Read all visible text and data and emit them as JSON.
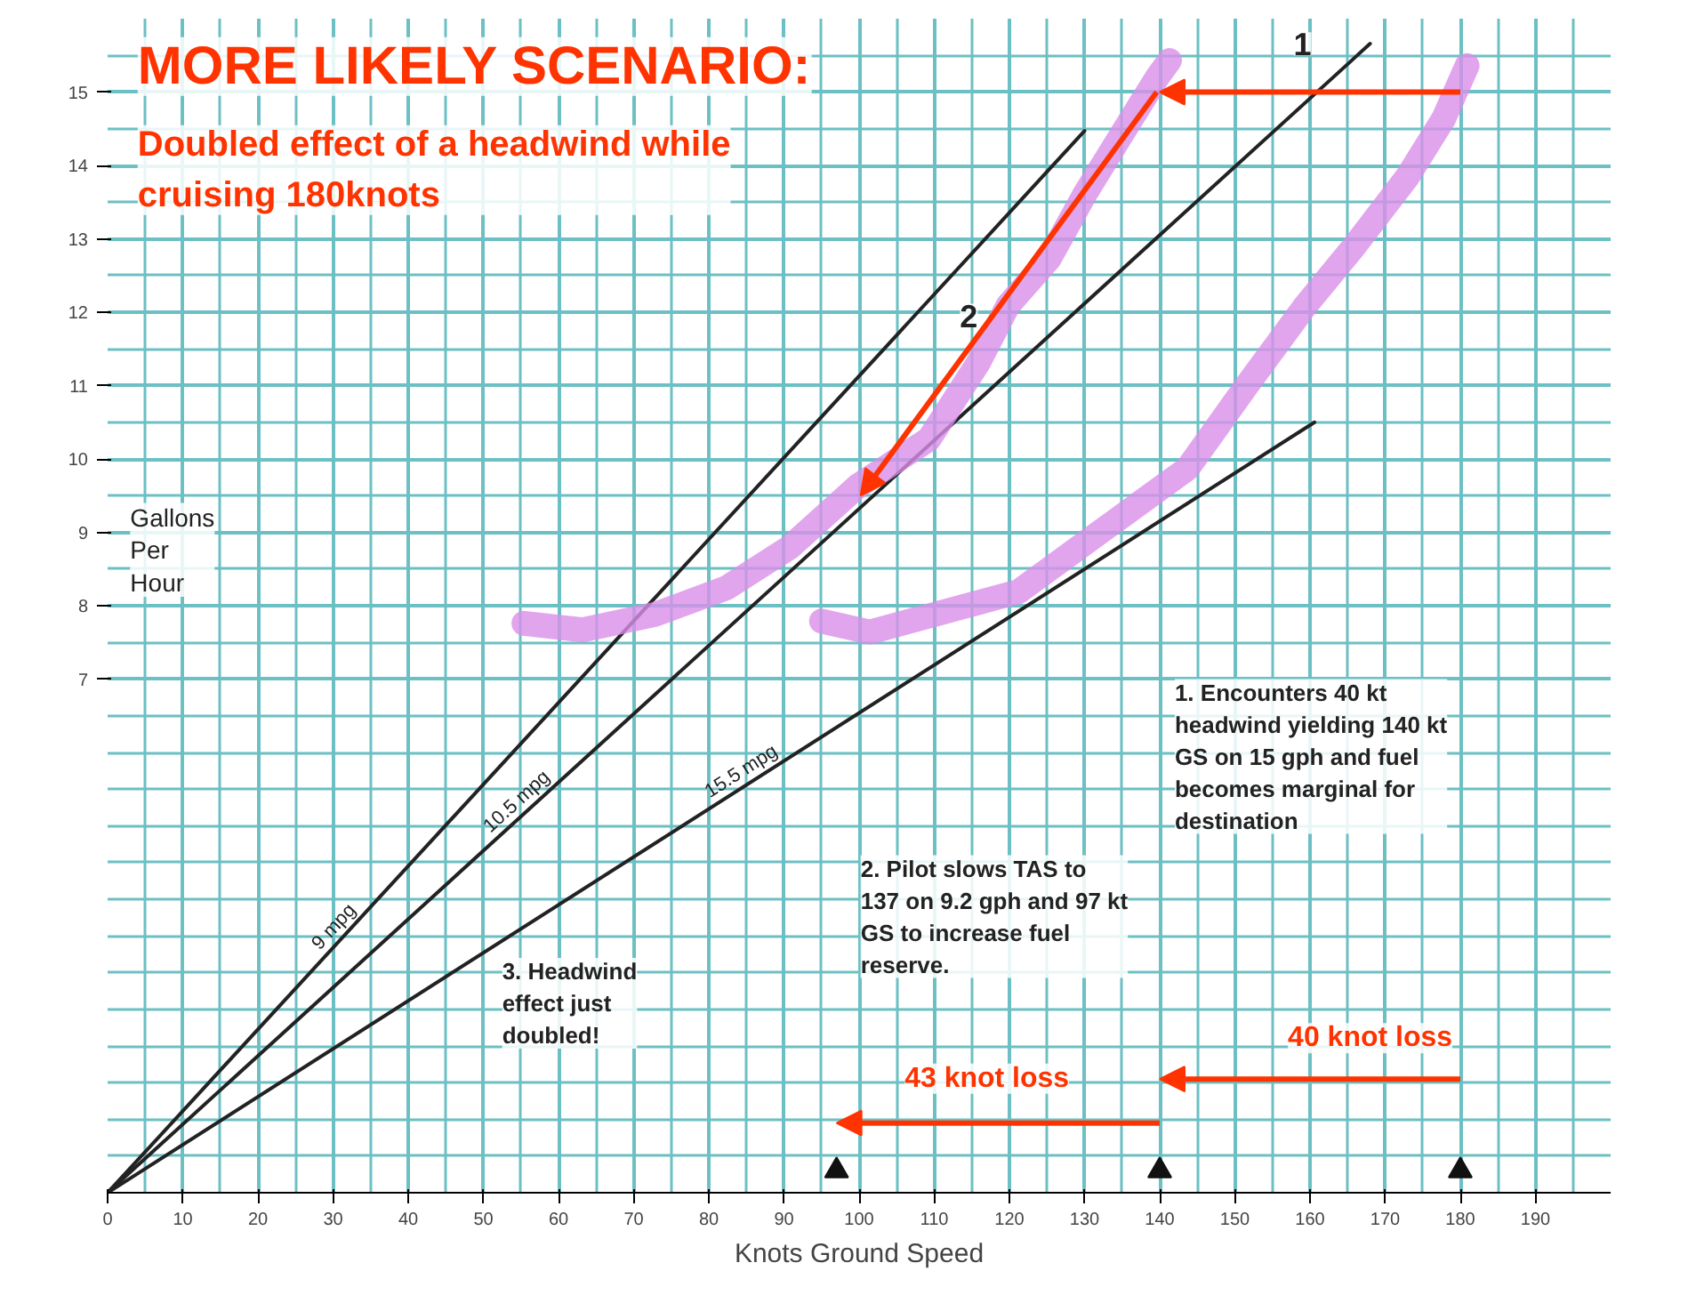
{
  "chart_data": {
    "type": "line",
    "title": "MORE LIKELY SCENARIO:",
    "subtitle": "Doubled effect of a headwind while cruising 180knots",
    "xlabel": "Knots Ground Speed",
    "ylabel": "Gallons Per Hour",
    "xlim": [
      0,
      200
    ],
    "ylim": [
      0,
      16
    ],
    "xticks": [
      0,
      10,
      20,
      30,
      40,
      50,
      60,
      70,
      80,
      90,
      100,
      110,
      120,
      130,
      140,
      150,
      160,
      170,
      180,
      190
    ],
    "yticks": [
      7,
      8,
      9,
      10,
      11,
      12,
      13,
      14,
      15
    ],
    "grid": true,
    "marker": "none",
    "line_style": "solid",
    "series": [
      {
        "name": "9 mpg",
        "color": "#222222",
        "x": [
          0,
          130
        ],
        "values": [
          0,
          14.47
        ]
      },
      {
        "name": "10.5 mpg",
        "color": "#222222",
        "x": [
          0,
          168
        ],
        "values": [
          0,
          15.66
        ]
      },
      {
        "name": "15.5 mpg",
        "color": "#222222",
        "x": [
          0,
          160.6
        ],
        "values": [
          0,
          10.5
        ]
      },
      {
        "color": "#d98ee8",
        "x": [
          55.4,
          63.2,
          72.8,
          82.3,
          90.7,
          99.8,
          109.3,
          115.8,
          119.8,
          125.3,
          130.1,
          134.8,
          139.6,
          141.3
        ],
        "values": [
          7.76,
          7.67,
          7.88,
          8.24,
          8.79,
          9.63,
          10.27,
          11.3,
          12.09,
          12.73,
          13.62,
          14.4,
          15.19,
          15.43
        ]
      },
      {
        "color": "#d98ee8",
        "x": [
          95,
          101.4,
          121.2,
          130.8,
          143.7,
          151.5,
          159.4,
          165.9,
          173,
          177.8,
          180.9
        ],
        "values": [
          7.79,
          7.64,
          8.19,
          8.91,
          9.87,
          10.99,
          12.09,
          12.9,
          13.85,
          14.64,
          15.36
        ]
      },
      {
        "type": "scatter",
        "marker": "triangle",
        "color": "#111111",
        "x": [
          97,
          140,
          180
        ],
        "values": [
          0.3,
          0.3,
          0.3
        ]
      }
    ],
    "annotations": [
      "1",
      "2",
      "1. Encounters 40 kt headwind yielding 140 kt GS on 15 gph and fuel becomes marginal for destination",
      "2. Pilot slows TAS to 137 on 9.2 gph and 97 kt GS to increase fuel reserve.",
      "3. Headwind effect just doubled!",
      "40 knot loss",
      "43 knot loss"
    ]
  }
}
